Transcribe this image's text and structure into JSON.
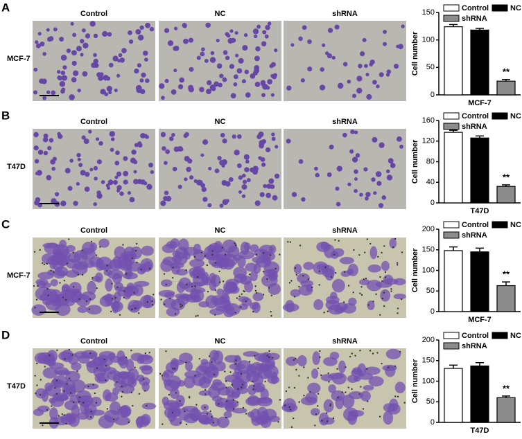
{
  "panels": [
    {
      "letter": "A",
      "row_label": "MCF-7",
      "column_labels": [
        "Control",
        "NC",
        "shRNA"
      ]
    },
    {
      "letter": "B",
      "row_label": "T47D",
      "column_labels": [
        "Control",
        "NC",
        "shRNA"
      ]
    },
    {
      "letter": "C",
      "row_label": "MCF-7",
      "column_labels": [
        "Control",
        "NC",
        "shRNA"
      ]
    },
    {
      "letter": "D",
      "row_label": "T47D",
      "column_labels": [
        "Control",
        "NC",
        "shRNA"
      ]
    }
  ],
  "chart_data": [
    {
      "type": "bar",
      "xlabel": "MCF-7",
      "ylabel": "Cell number",
      "categories": [
        "Control",
        "NC",
        "shRNA"
      ],
      "colors": [
        "#ffffff",
        "#000000",
        "#8c8c8c"
      ],
      "values": [
        124,
        118,
        25
      ],
      "errors": [
        4,
        3,
        3
      ],
      "annotation": "**",
      "ylim": [
        0,
        150
      ],
      "yticks": [
        0,
        50,
        100,
        150
      ]
    },
    {
      "type": "bar",
      "xlabel": "T47D",
      "ylabel": "Cell number",
      "categories": [
        "Control",
        "NC",
        "shRNA"
      ],
      "colors": [
        "#ffffff",
        "#000000",
        "#8c8c8c"
      ],
      "values": [
        137,
        126,
        32
      ],
      "errors": [
        4,
        4,
        3
      ],
      "annotation": "**",
      "ylim": [
        0,
        160
      ],
      "yticks": [
        0,
        40,
        80,
        120,
        160
      ]
    },
    {
      "type": "bar",
      "xlabel": "MCF-7",
      "ylabel": "Cell number",
      "categories": [
        "Control",
        "NC",
        "shRNA"
      ],
      "colors": [
        "#ffffff",
        "#000000",
        "#8c8c8c"
      ],
      "values": [
        148,
        145,
        63
      ],
      "errors": [
        9,
        9,
        9
      ],
      "annotation": "**",
      "ylim": [
        0,
        200
      ],
      "yticks": [
        0,
        50,
        100,
        150,
        200
      ]
    },
    {
      "type": "bar",
      "xlabel": "T47D",
      "ylabel": "Cell number",
      "categories": [
        "Control",
        "NC",
        "shRNA"
      ],
      "colors": [
        "#ffffff",
        "#000000",
        "#8c8c8c"
      ],
      "values": [
        131,
        137,
        60
      ],
      "errors": [
        8,
        8,
        4
      ],
      "annotation": "**",
      "ylim": [
        0,
        200
      ],
      "yticks": [
        0,
        50,
        100,
        150,
        200
      ]
    }
  ]
}
